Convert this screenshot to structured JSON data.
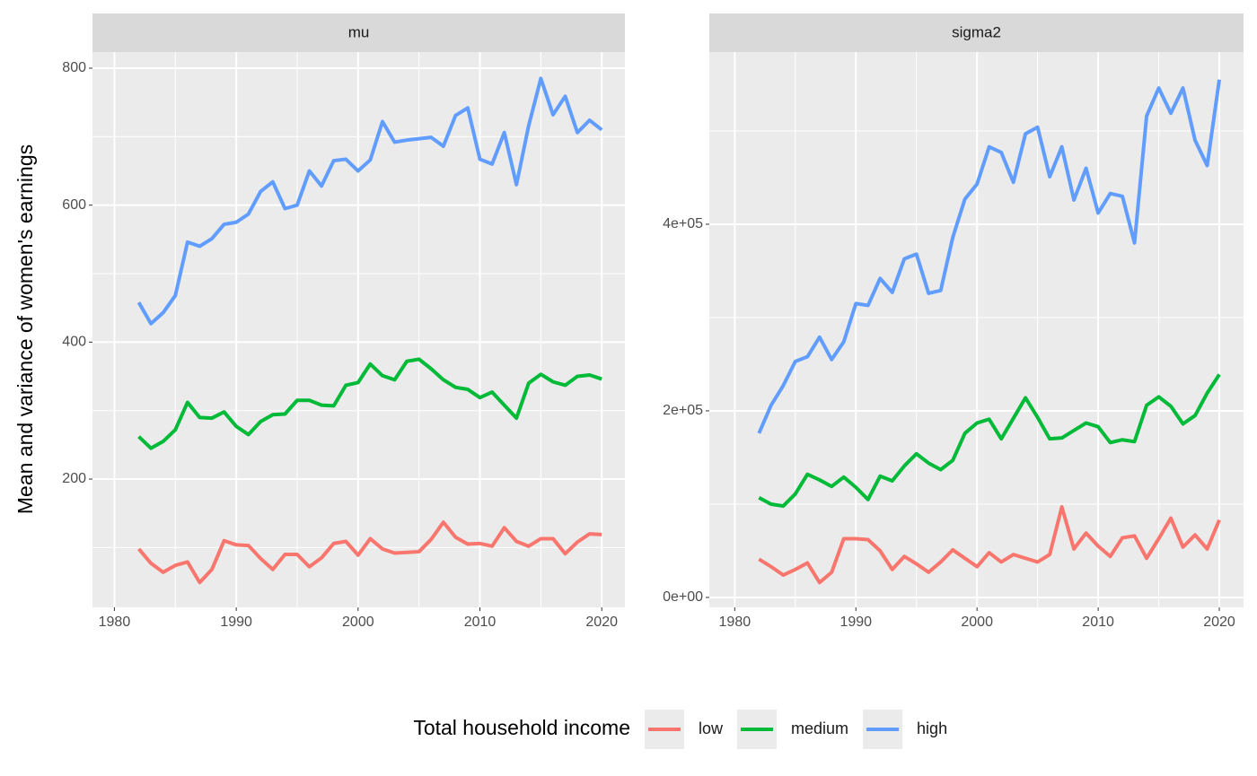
{
  "chart_data": [
    {
      "type": "line",
      "title": "mu",
      "y_label": "Mean and variance of women's earnings",
      "legend_title": "Total household income",
      "legend": "bottom",
      "grid": true,
      "x": [
        1982,
        1983,
        1984,
        1985,
        1986,
        1987,
        1988,
        1989,
        1990,
        1991,
        1992,
        1993,
        1994,
        1995,
        1996,
        1997,
        1998,
        1999,
        2000,
        2001,
        2002,
        2003,
        2004,
        2005,
        2006,
        2007,
        2008,
        2009,
        2010,
        2011,
        2012,
        2013,
        2014,
        2015,
        2016,
        2017,
        2018,
        2019,
        2020
      ],
      "xlim": [
        1978.2,
        2021.9
      ],
      "xticks": [
        1980,
        1990,
        2000,
        2010,
        2020
      ],
      "ylim": [
        12.7,
        823.6
      ],
      "yticks": [
        200,
        400,
        600,
        800
      ],
      "series": [
        {
          "name": "low",
          "color": "#F8766D",
          "values": [
            98,
            77,
            64,
            74,
            79,
            49,
            68,
            110,
            104,
            103,
            84,
            68,
            90,
            90,
            72,
            85,
            106,
            109,
            89,
            113,
            98,
            92,
            93,
            94,
            112,
            137,
            115,
            105,
            106,
            102,
            129,
            109,
            102,
            113,
            113,
            91,
            108,
            120,
            119
          ]
        },
        {
          "name": "medium",
          "color": "#00BA38",
          "values": [
            262,
            245,
            255,
            272,
            312,
            290,
            289,
            298,
            277,
            265,
            284,
            294,
            295,
            315,
            315,
            308,
            307,
            337,
            341,
            368,
            351,
            345,
            372,
            375,
            361,
            345,
            334,
            331,
            319,
            327,
            308,
            289,
            340,
            353,
            342,
            337,
            350,
            352,
            346
          ]
        },
        {
          "name": "high",
          "color": "#619CFF",
          "values": [
            458,
            427,
            443,
            468,
            546,
            540,
            551,
            572,
            575,
            587,
            620,
            634,
            595,
            600,
            650,
            628,
            665,
            667,
            650,
            666,
            722,
            692,
            695,
            697,
            699,
            686,
            731,
            742,
            667,
            660,
            706,
            630,
            716,
            785,
            732,
            759,
            706,
            724,
            710
          ]
        }
      ]
    },
    {
      "type": "line",
      "title": "sigma2",
      "grid": true,
      "x": [
        1982,
        1983,
        1984,
        1985,
        1986,
        1987,
        1988,
        1989,
        1990,
        1991,
        1992,
        1993,
        1994,
        1995,
        1996,
        1997,
        1998,
        1999,
        2000,
        2001,
        2002,
        2003,
        2004,
        2005,
        2006,
        2007,
        2008,
        2009,
        2010,
        2011,
        2012,
        2013,
        2014,
        2015,
        2016,
        2017,
        2018,
        2019,
        2020
      ],
      "xlim": [
        1977.9,
        2022.0
      ],
      "xticks": [
        1980,
        1990,
        2000,
        2010,
        2020
      ],
      "ylim": [
        -10600,
        584600
      ],
      "yticks": [
        {
          "value": 0,
          "label": "0e+00"
        },
        {
          "value": 200000,
          "label": "2e+05"
        },
        {
          "value": 400000,
          "label": "4e+05"
        }
      ],
      "series": [
        {
          "name": "low",
          "color": "#F8766D",
          "values": [
            41000,
            33000,
            24000,
            30000,
            37000,
            16000,
            27000,
            63000,
            63000,
            62000,
            50000,
            30000,
            44000,
            36000,
            27000,
            38000,
            51000,
            42000,
            33000,
            48000,
            38000,
            46000,
            42000,
            38000,
            46000,
            97000,
            52000,
            69000,
            55000,
            44000,
            64000,
            66000,
            42000,
            63000,
            85000,
            54000,
            67000,
            52000,
            83000
          ]
        },
        {
          "name": "medium",
          "color": "#00BA38",
          "values": [
            107000,
            100000,
            98000,
            111000,
            132000,
            126000,
            119000,
            129000,
            118000,
            105000,
            130000,
            125000,
            141000,
            154000,
            144000,
            137000,
            147000,
            176000,
            187000,
            191000,
            170000,
            192000,
            214000,
            193000,
            170000,
            171000,
            179000,
            187000,
            183000,
            166000,
            169000,
            167000,
            206000,
            215000,
            205000,
            186000,
            195000,
            219000,
            239000
          ]
        },
        {
          "name": "high",
          "color": "#619CFF",
          "values": [
            176000,
            206000,
            227000,
            253000,
            258000,
            279000,
            255000,
            274000,
            315000,
            313000,
            342000,
            327000,
            363000,
            368000,
            326000,
            329000,
            386000,
            427000,
            443000,
            483000,
            477000,
            445000,
            497000,
            504000,
            451000,
            483000,
            426000,
            460000,
            412000,
            433000,
            430000,
            380000,
            516000,
            546000,
            519000,
            546000,
            490000,
            463000,
            555000
          ]
        }
      ]
    }
  ]
}
